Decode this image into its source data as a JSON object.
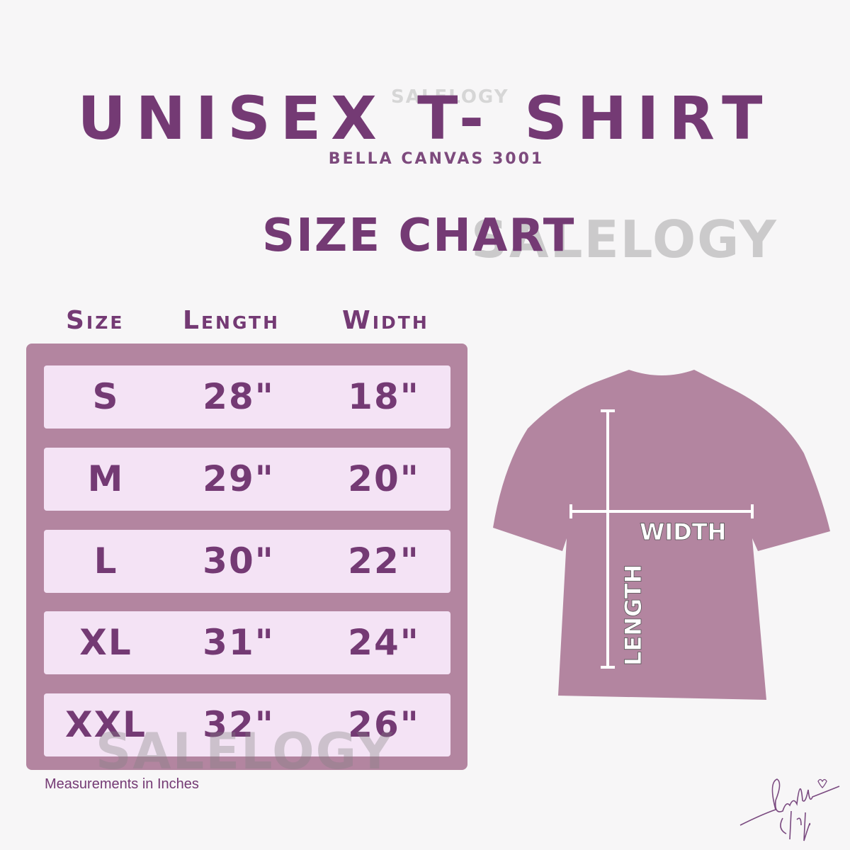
{
  "header": {
    "title": "UNISEX T- SHIRT",
    "subtitle": "BELLA CANVAS 3001",
    "chart_title": "SIZE CHART"
  },
  "watermark": "SALELOGY",
  "table": {
    "columns": [
      "Size",
      "Length",
      "Width"
    ],
    "rows": [
      [
        "S",
        "28\"",
        "18\""
      ],
      [
        "M",
        "29\"",
        "20\""
      ],
      [
        "L",
        "30\"",
        "22\""
      ],
      [
        "XL",
        "31\"",
        "24\""
      ],
      [
        "XXL",
        "32\"",
        "26\""
      ]
    ],
    "note": "Measurements in Inches"
  },
  "diagram": {
    "width_label": "WIDTH",
    "length_label": "LENGTH"
  },
  "signature": "Cocolu shop",
  "colors": {
    "primary": "#743a74",
    "panel": "#b385a0",
    "row_bg": "#f4e3f5",
    "background": "#f7f6f7"
  }
}
